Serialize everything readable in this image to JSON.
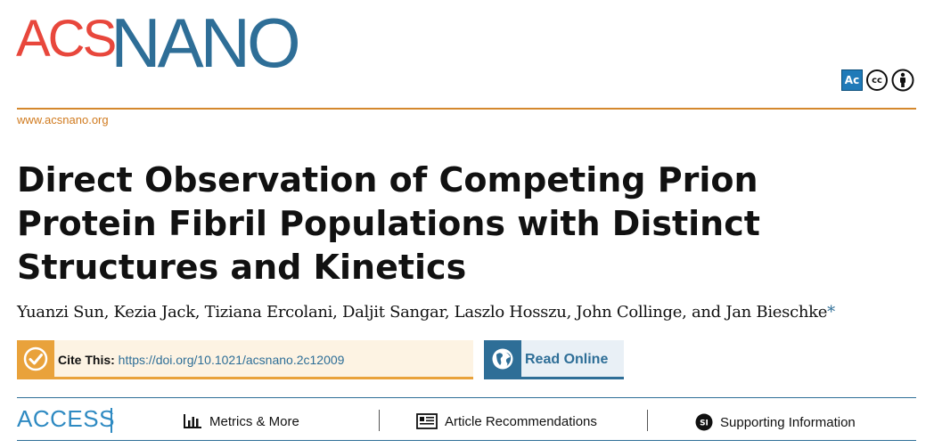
{
  "journal": {
    "logo_part1": "ACS",
    "logo_part2": "NANO",
    "website": "www.acsnano.org",
    "license_badges": [
      "Ac",
      "cc",
      "by-icon"
    ]
  },
  "article": {
    "title": "Direct Observation of Competing Prion Protein Fibril Populations with Distinct Structures and Kinetics",
    "authors": "Yuanzi Sun, Kezia Jack, Tiziana Ercolani, Daljit Sangar, Laszlo Hosszu, John Collinge, and Jan Bieschke",
    "corresponding_mark": "*"
  },
  "cite": {
    "label": "Cite This:",
    "doi": "https://doi.org/10.1021/acsnano.2c12009"
  },
  "read_online": {
    "label": "Read Online"
  },
  "access_bar": {
    "access_label": "ACCESS",
    "tabs": [
      {
        "label": "Metrics & More",
        "icon": "bar-chart-icon"
      },
      {
        "label": "Article Recommendations",
        "icon": "article-list-icon"
      },
      {
        "label": "Supporting Information",
        "icon": "si-icon"
      }
    ]
  },
  "colors": {
    "acs_red": "#e8473c",
    "nano_blue": "#2e6e97",
    "accent_orange": "#e9a23b",
    "access_blue": "#2e8ac2"
  }
}
